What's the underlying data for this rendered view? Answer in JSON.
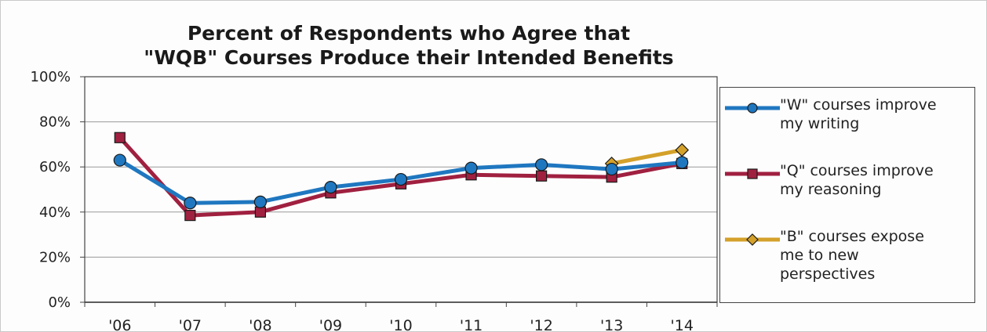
{
  "chart_data": {
    "type": "line",
    "title_lines": [
      "Percent of Respondents who Agree that",
      "\"WQB\" Courses Produce their Intended Benefits"
    ],
    "categories": [
      "'06",
      "'07",
      "'08",
      "'09",
      "'10",
      "'11",
      "'12",
      "'13",
      "'14"
    ],
    "ylim": [
      0,
      100
    ],
    "yticks": [
      0,
      20,
      40,
      60,
      80,
      100
    ],
    "ytick_labels": [
      "0%",
      "20%",
      "40%",
      "60%",
      "80%",
      "100%"
    ],
    "grid": true,
    "legend_position": "right",
    "series": [
      {
        "label_lines": [
          "\"W\" courses improve",
          "my writing"
        ],
        "color": "#1f77c0",
        "marker": "circle",
        "values": [
          63,
          44,
          44.5,
          51,
          54.5,
          59.5,
          61,
          59,
          62
        ]
      },
      {
        "label_lines": [
          "\"Q\" courses improve",
          "my reasoning"
        ],
        "color": "#a02040",
        "marker": "square",
        "values": [
          73,
          38.5,
          40,
          48.5,
          52.5,
          56.5,
          56,
          55.5,
          61.5
        ]
      },
      {
        "label_lines": [
          "\"B\" courses expose",
          "me to new",
          "perspectives"
        ],
        "color": "#d4a12a",
        "marker": "diamond",
        "values": [
          null,
          null,
          null,
          null,
          null,
          null,
          null,
          61.5,
          67.5
        ]
      }
    ]
  }
}
